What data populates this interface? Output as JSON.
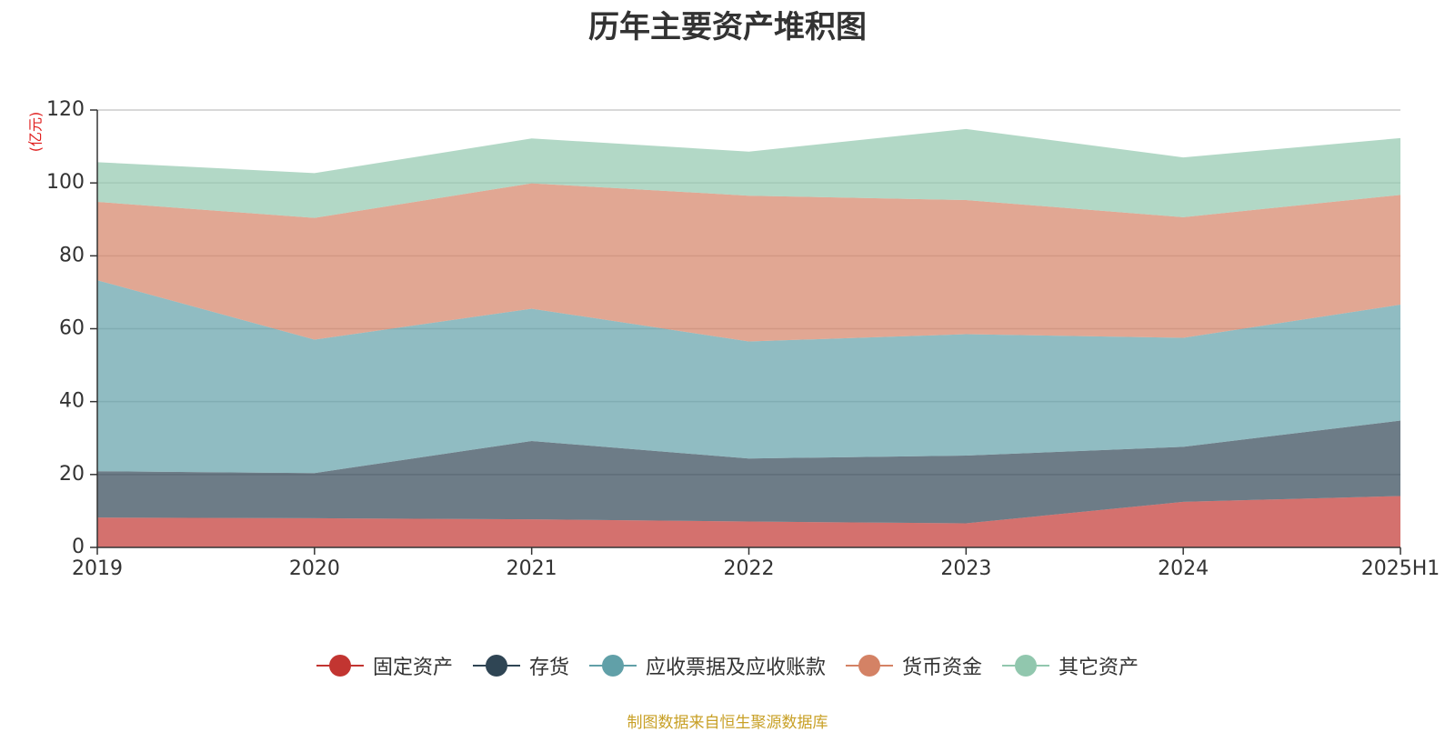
{
  "chart_data": {
    "type": "area",
    "stacked": true,
    "title": "历年主要资产堆积图",
    "ylabel": "(亿元)",
    "xlabel": "",
    "categories": [
      "2019",
      "2020",
      "2021",
      "2022",
      "2023",
      "2024",
      "2025H1"
    ],
    "ylim": [
      0,
      120
    ],
    "yticks": [
      0,
      20,
      40,
      60,
      80,
      100,
      120
    ],
    "grid": true,
    "legend_position": "bottom",
    "series": [
      {
        "name": "固定资产",
        "color": "#c23531",
        "values": [
          8.2,
          8.0,
          7.7,
          7.1,
          6.6,
          12.5,
          14.1
        ]
      },
      {
        "name": "存货",
        "color": "#2f4554",
        "values": [
          12.7,
          12.4,
          21.5,
          17.3,
          18.6,
          15.1,
          20.7
        ]
      },
      {
        "name": "应收票据及应收账款",
        "color": "#61a0a8",
        "values": [
          52.4,
          36.6,
          36.3,
          32.1,
          33.3,
          29.9,
          31.8
        ]
      },
      {
        "name": "货币资金",
        "color": "#d48265",
        "values": [
          21.5,
          33.4,
          34.4,
          40.0,
          36.8,
          33.1,
          30.1
        ]
      },
      {
        "name": "其它资产",
        "color": "#91c7ae",
        "values": [
          10.9,
          12.3,
          12.3,
          12.1,
          19.5,
          16.4,
          15.6
        ]
      }
    ]
  },
  "source_note": "制图数据来自恒生聚源数据库"
}
